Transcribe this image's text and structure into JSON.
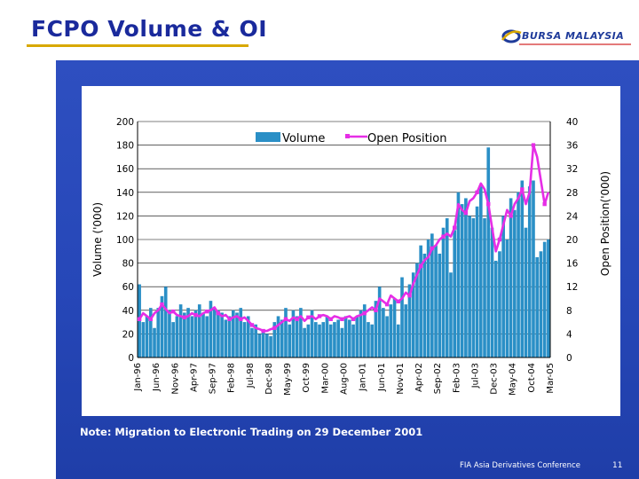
{
  "slide": {
    "title": "FCPO Volume & OI",
    "logo_text": "BURSA MALAYSIA",
    "note": "Note: Migration to Electronic Trading on 29 December 2001",
    "footer": "FIA Asia Derivatives Conference",
    "page_number": "11"
  },
  "colors": {
    "title": "#1a2a9c",
    "rule": "#d8a800",
    "panel": "#2647b8",
    "bar": "#2a8fc6",
    "line": "#e62ee6"
  },
  "chart_data": {
    "type": "bar",
    "title": "",
    "ylabel": "Volume ('000)",
    "y2label": "Open Position('000)",
    "ylim": [
      0,
      200
    ],
    "y2lim": [
      0,
      40
    ],
    "yticks": [
      "0",
      "20",
      "40",
      "60",
      "80",
      "100",
      "120",
      "140",
      "160",
      "180",
      "200"
    ],
    "y2ticks": [
      "0",
      "4",
      "8",
      "12",
      "16",
      "20",
      "24",
      "28",
      "32",
      "36",
      "40"
    ],
    "xticklabels": [
      "Jan-96",
      "Jun-96",
      "Nov-96",
      "Apr-97",
      "Sep-97",
      "Feb-98",
      "Jul-98",
      "Dec-98",
      "May-99",
      "Oct-99",
      "Mar-00",
      "Aug-00",
      "Jan-01",
      "Jun-01",
      "Nov-01",
      "Apr-02",
      "Sep-02",
      "Feb-03",
      "Jul-03",
      "Dec-03",
      "May-04",
      "Oct-04",
      "Mar-05"
    ],
    "legend": [
      "Volume",
      "Open Position"
    ],
    "legend_position": "top-center",
    "series": [
      {
        "name": "Volume",
        "kind": "bar",
        "axis": "left",
        "values": [
          62,
          30,
          35,
          42,
          25,
          42,
          52,
          60,
          40,
          30,
          35,
          45,
          38,
          42,
          35,
          40,
          45,
          38,
          35,
          48,
          42,
          40,
          38,
          32,
          35,
          40,
          38,
          42,
          30,
          35,
          25,
          28,
          20,
          22,
          20,
          18,
          30,
          35,
          32,
          42,
          28,
          40,
          35,
          42,
          25,
          28,
          40,
          30,
          28,
          30,
          35,
          28,
          30,
          32,
          25,
          35,
          32,
          28,
          35,
          40,
          45,
          30,
          28,
          48,
          60,
          42,
          35,
          45,
          50,
          28,
          68,
          45,
          62,
          72,
          80,
          95,
          88,
          100,
          105,
          95,
          88,
          110,
          118,
          72,
          108,
          140,
          130,
          135,
          120,
          118,
          128,
          145,
          118,
          178,
          110,
          82,
          90,
          120,
          100,
          135,
          125,
          140,
          150,
          110,
          145,
          150,
          85,
          90,
          98,
          100
        ]
      },
      {
        "name": "Open Position",
        "kind": "line",
        "axis": "right",
        "values": [
          6.5,
          7.5,
          7.0,
          6.5,
          7.5,
          8.0,
          9.0,
          8.2,
          7.5,
          7.8,
          7.2,
          7.0,
          6.8,
          7.0,
          7.5,
          7.2,
          7.0,
          7.5,
          7.8,
          8.0,
          8.5,
          7.5,
          7.0,
          7.2,
          6.5,
          6.8,
          7.0,
          6.5,
          6.8,
          6.2,
          5.5,
          5.0,
          4.8,
          4.5,
          4.5,
          4.8,
          5.0,
          5.5,
          6.0,
          6.5,
          6.2,
          6.8,
          6.5,
          7.0,
          6.2,
          6.8,
          7.0,
          6.5,
          7.0,
          7.2,
          7.0,
          6.5,
          7.0,
          6.8,
          6.5,
          6.8,
          7.0,
          6.5,
          7.0,
          7.2,
          7.5,
          8.0,
          8.5,
          8.0,
          10.0,
          9.5,
          9.0,
          10.5,
          10.0,
          9.5,
          10.0,
          11.0,
          10.5,
          12.5,
          14.0,
          15.5,
          16.5,
          17.0,
          18.5,
          19.0,
          20.0,
          20.5,
          21.0,
          20.5,
          22.0,
          26.0,
          25.0,
          24.5,
          26.5,
          27.0,
          28.0,
          29.5,
          28.5,
          26.0,
          22.0,
          18.0,
          20.0,
          22.5,
          25.0,
          24.0,
          26.0,
          27.0,
          28.5,
          26.0,
          28.0,
          36.0,
          34.0,
          30.0,
          26.0,
          28.0
        ]
      }
    ]
  }
}
